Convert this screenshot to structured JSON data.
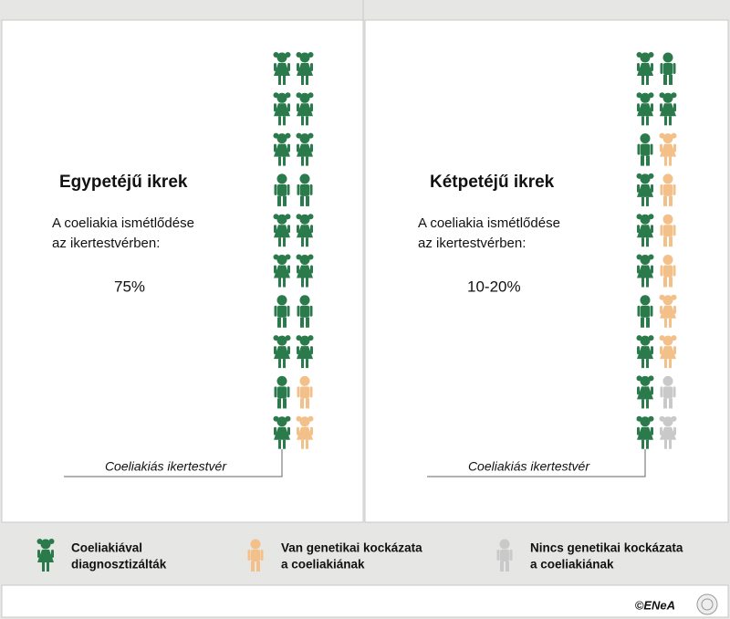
{
  "panels": [
    {
      "title": "Egypetéjű ikrek",
      "description": [
        "A coeliakia ismétlődése",
        "az ikertestvérben:"
      ],
      "value": "75%",
      "caption": "Coeliakiás ikertestvér"
    },
    {
      "title": "Kétpetéjű ikrek",
      "description": [
        "A coeliakia ismétlődése",
        "az ikertestvérben:"
      ],
      "value": "10-20%",
      "caption": "Coeliakiás ikertestvér"
    }
  ],
  "legend": [
    {
      "label": [
        "Coeliakiával",
        "diagnosztizálták"
      ]
    },
    {
      "label": [
        "Van genetikai kockázata",
        "a coeliakiának"
      ]
    },
    {
      "label": [
        "Nincs genetikai kockázata",
        "a coeliakiának"
      ]
    }
  ],
  "footer": {
    "copyright": "©ENeA"
  }
}
